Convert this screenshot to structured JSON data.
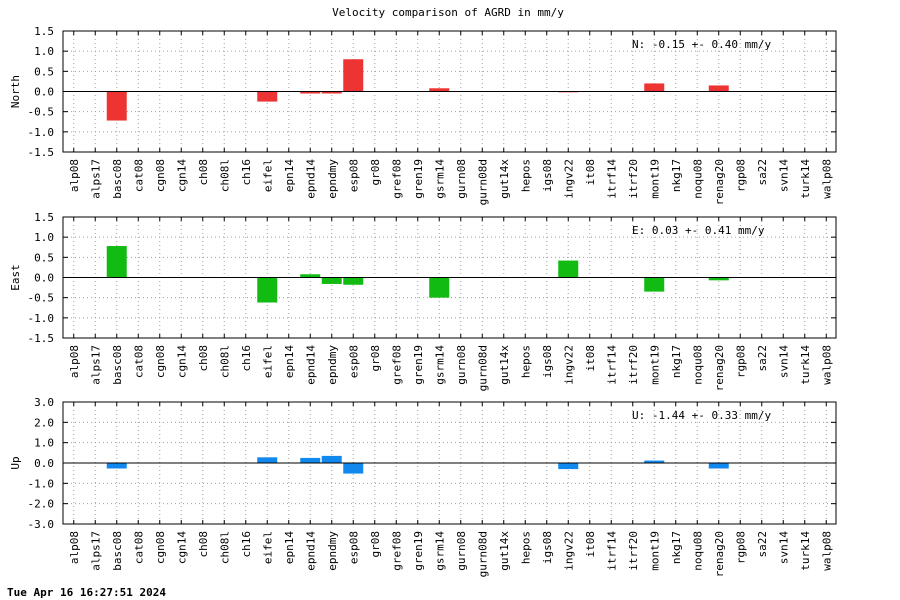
{
  "title": "Velocity comparison of AGRD in mm/y",
  "footer": "Tue Apr 16 16:27:51 2024",
  "chart_data": [
    {
      "type": "bar",
      "ylabel": "North",
      "color": "#ee3333",
      "ylim": [
        -1.5,
        1.5
      ],
      "yticks": [
        1.5,
        1.0,
        0.5,
        0.0,
        -0.5,
        -1.0,
        -1.5
      ],
      "ytick_labels": [
        "1.5",
        "1.0",
        "0.5",
        "0.0",
        "-0.5",
        "-1.0",
        "-1.5"
      ],
      "annotation": "N:  -0.15 +-  0.40 mm/y",
      "grid": true,
      "categories": [
        "alp08",
        "alps17",
        "basc08",
        "cat08",
        "cgn08",
        "cgn14",
        "ch08",
        "ch08l",
        "ch16",
        "eifel",
        "epn14",
        "epnd14",
        "epndmy",
        "esp08",
        "gr08",
        "gref08",
        "gren19",
        "gsrm14",
        "gurn08",
        "gurn08d",
        "gut14x",
        "hepos",
        "igs08",
        "ingv22",
        "it08",
        "itrf14",
        "itrf20",
        "mont19",
        "nkg17",
        "noqu08",
        "renag20",
        "rgp08",
        "sa22",
        "svn14",
        "turk14",
        "walp08"
      ],
      "values": [
        0,
        0,
        -0.72,
        0,
        0,
        0,
        0,
        0,
        0,
        -0.25,
        0,
        -0.05,
        -0.05,
        0.8,
        0,
        0,
        0,
        0.08,
        0,
        0,
        0,
        0,
        0,
        -0.02,
        0,
        0,
        0,
        0.2,
        0,
        0,
        0.15,
        0,
        0,
        0,
        0,
        0
      ]
    },
    {
      "type": "bar",
      "ylabel": "East",
      "color": "#11bb11",
      "ylim": [
        -1.5,
        1.5
      ],
      "yticks": [
        1.5,
        1.0,
        0.5,
        0.0,
        -0.5,
        -1.0,
        -1.5
      ],
      "ytick_labels": [
        "1.5",
        "1.0",
        "0.5",
        "0.0",
        "-0.5",
        "-1.0",
        "-1.5"
      ],
      "annotation": "E:   0.03 +-  0.41 mm/y",
      "grid": true,
      "categories": [
        "alp08",
        "alps17",
        "basc08",
        "cat08",
        "cgn08",
        "cgn14",
        "ch08",
        "ch08l",
        "ch16",
        "eifel",
        "epn14",
        "epnd14",
        "epndmy",
        "esp08",
        "gr08",
        "gref08",
        "gren19",
        "gsrm14",
        "gurn08",
        "gurn08d",
        "gut14x",
        "hepos",
        "igs08",
        "ingv22",
        "it08",
        "itrf14",
        "itrf20",
        "mont19",
        "nkg17",
        "noqu08",
        "renag20",
        "rgp08",
        "sa22",
        "svn14",
        "turk14",
        "walp08"
      ],
      "values": [
        0,
        0,
        0.78,
        0,
        0,
        0,
        0,
        0,
        0,
        -0.62,
        0,
        0.08,
        -0.16,
        -0.18,
        0,
        0,
        0,
        -0.5,
        0,
        0,
        0,
        0,
        0,
        0.42,
        0,
        0,
        0,
        -0.35,
        0,
        0,
        -0.07,
        0,
        0,
        0,
        0,
        0
      ]
    },
    {
      "type": "bar",
      "ylabel": "Up",
      "color": "#1188ee",
      "ylim": [
        -3.0,
        3.0
      ],
      "yticks": [
        3.0,
        2.0,
        1.0,
        0.0,
        -1.0,
        -2.0,
        -3.0
      ],
      "ytick_labels": [
        "3.0",
        "2.0",
        "1.0",
        "0.0",
        "-1.0",
        "-2.0",
        "-3.0"
      ],
      "annotation": "U:  -1.44 +-  0.33 mm/y",
      "grid": true,
      "categories": [
        "alp08",
        "alps17",
        "basc08",
        "cat08",
        "cgn08",
        "cgn14",
        "ch08",
        "ch08l",
        "ch16",
        "eifel",
        "epn14",
        "epnd14",
        "epndmy",
        "esp08",
        "gr08",
        "gref08",
        "gren19",
        "gsrm14",
        "gurn08",
        "gurn08d",
        "gut14x",
        "hepos",
        "igs08",
        "ingv22",
        "it08",
        "itrf14",
        "itrf20",
        "mont19",
        "nkg17",
        "noqu08",
        "renag20",
        "rgp08",
        "sa22",
        "svn14",
        "turk14",
        "walp08"
      ],
      "values": [
        0,
        0,
        -0.27,
        0,
        0,
        0,
        0,
        0,
        0,
        0.28,
        0,
        0.25,
        0.35,
        -0.52,
        0,
        0,
        0,
        0,
        0,
        0,
        0,
        0,
        0,
        -0.3,
        0,
        0,
        0,
        0.12,
        0,
        0,
        -0.27,
        0,
        0,
        0,
        0,
        0
      ]
    }
  ]
}
